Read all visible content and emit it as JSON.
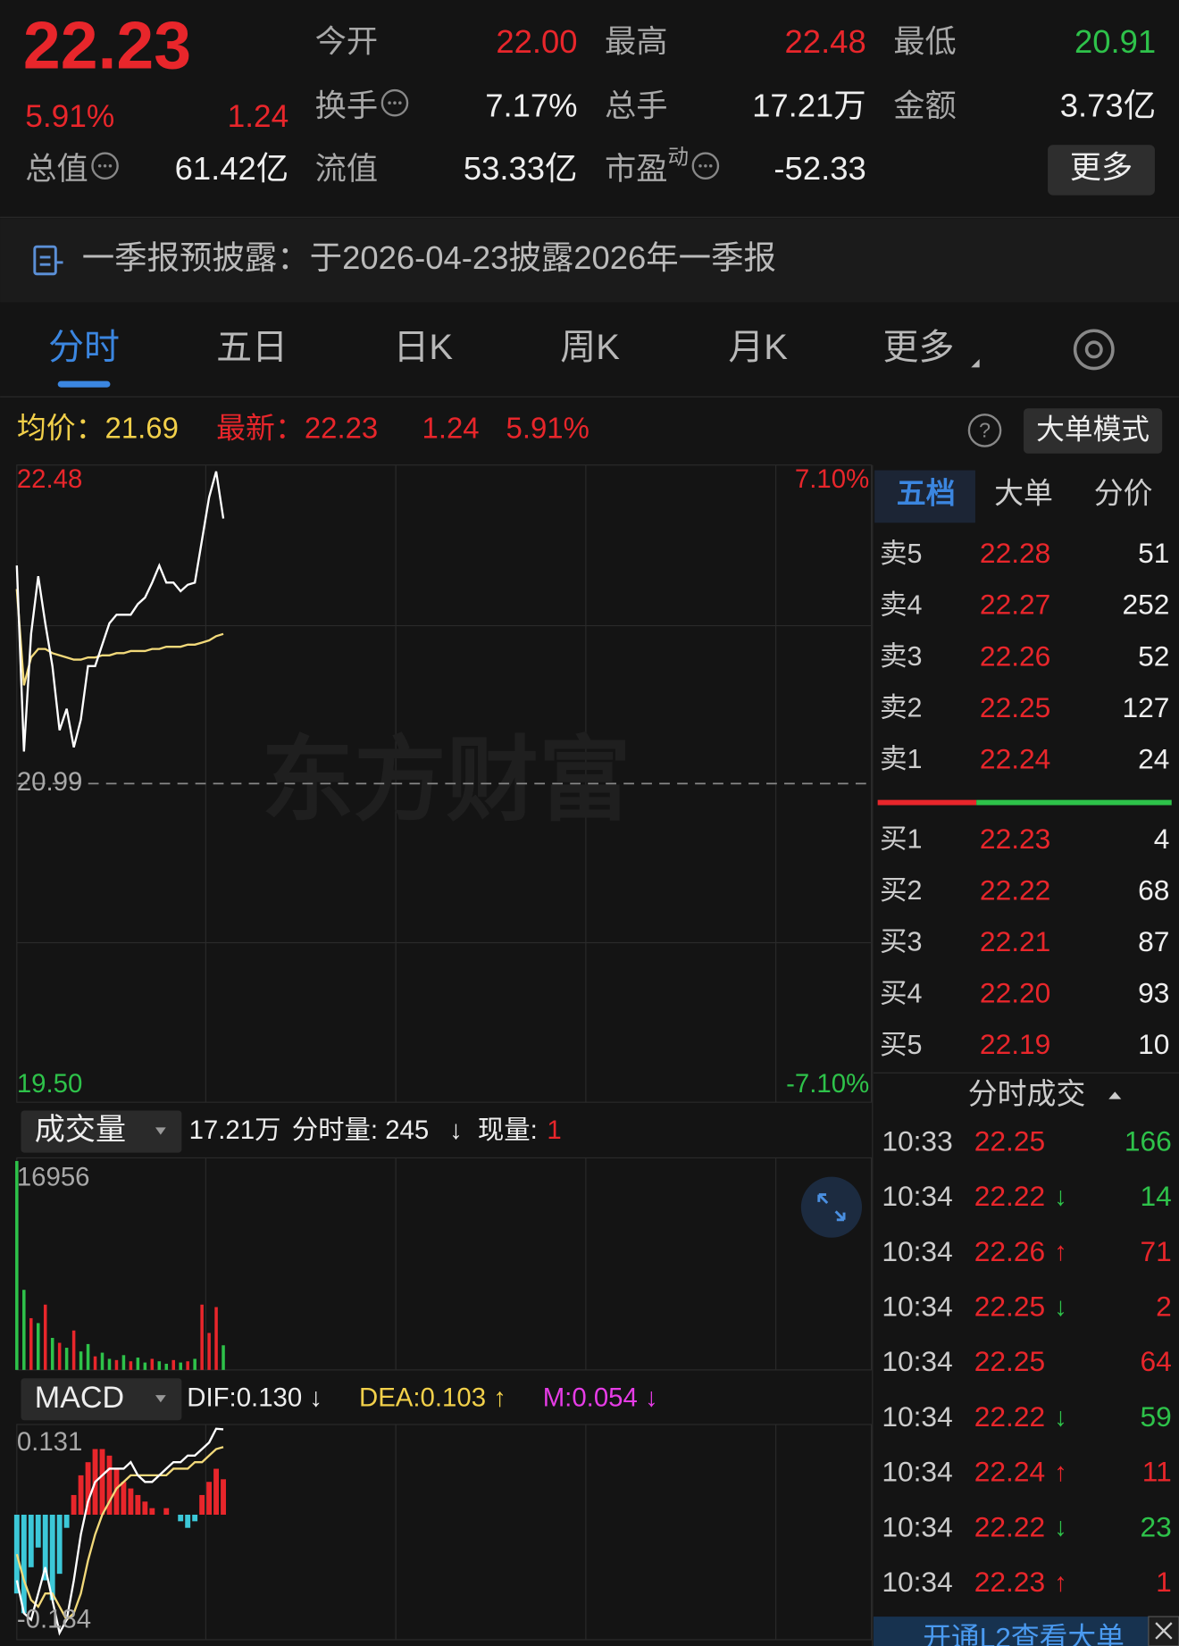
{
  "header": {
    "price": "22.23",
    "change_pct": "5.91%",
    "change": "1.24",
    "stats": [
      {
        "label": "今开",
        "value": "22.00",
        "color": "#e8262b"
      },
      {
        "label": "最高",
        "value": "22.48",
        "color": "#e8262b"
      },
      {
        "label": "最低",
        "value": "20.91",
        "color": "#2ec24a"
      },
      {
        "label": "换手",
        "value": "7.17%",
        "color": "#eeeeee",
        "info": true
      },
      {
        "label": "总手",
        "value": "17.21万",
        "color": "#eeeeee"
      },
      {
        "label": "金额",
        "value": "3.73亿",
        "color": "#eeeeee"
      },
      {
        "label": "总值",
        "value": "61.42亿",
        "color": "#eeeeee",
        "info": true
      },
      {
        "label": "流值",
        "value": "53.33亿",
        "color": "#eeeeee"
      },
      {
        "label": "市盈",
        "sup": "动",
        "value": "-52.33",
        "color": "#eeeeee",
        "info": true
      }
    ],
    "more_button": "更多"
  },
  "notice": "一季报预披露：于2026-04-23披露2026年一季报",
  "tabs": [
    "分时",
    "五日",
    "日K",
    "周K",
    "月K",
    "更多"
  ],
  "info_row": {
    "avg": "均价：21.69",
    "latest": "最新：22.23",
    "change": "1.24",
    "change_pct": "5.91%",
    "help": "?",
    "mode_button": "大单模式"
  },
  "price_chart": {
    "watermark": "东方财富",
    "minutes": [
      0,
      2,
      4,
      6,
      8,
      10,
      12,
      14,
      16,
      18,
      20,
      22,
      24,
      26,
      28,
      30,
      32,
      34,
      36,
      38,
      40,
      42,
      44,
      46,
      48,
      50,
      52,
      54,
      56,
      58
    ],
    "xlim": [
      0,
      240
    ],
    "ylim": [
      19.5,
      22.48
    ],
    "yticks": [
      22.48,
      20.99,
      {
        "value": 19.5,
        "label": "19.50"
      }
    ],
    "pct_ticks": [
      "7.10%",
      "-7.10%"
    ],
    "price": [
      22.01,
      21.14,
      21.69,
      21.96,
      21.74,
      21.54,
      21.24,
      21.34,
      21.16,
      21.29,
      21.54,
      21.54,
      21.64,
      21.74,
      21.78,
      21.78,
      21.78,
      21.83,
      21.86,
      21.93,
      22.01,
      21.93,
      21.93,
      21.89,
      21.92,
      21.93,
      22.13,
      22.33,
      22.45,
      22.23
    ],
    "avg": [
      21.9,
      21.45,
      21.58,
      21.62,
      21.62,
      21.6,
      21.59,
      21.58,
      21.57,
      21.57,
      21.58,
      21.58,
      21.59,
      21.59,
      21.6,
      21.6,
      21.61,
      21.61,
      21.61,
      21.62,
      21.62,
      21.63,
      21.63,
      21.63,
      21.64,
      21.64,
      21.65,
      21.66,
      21.68,
      21.69
    ]
  },
  "volume_chart": {
    "selector": "成交量",
    "total": "17.21万",
    "minute_volume": "分时量: 245",
    "trend": "↓",
    "current_label": "现量:",
    "current": "1",
    "ylim": [
      0,
      16956
    ],
    "yticks": [
      16956
    ],
    "values": [
      16956,
      6500,
      4200,
      3800,
      5300,
      2600,
      2200,
      1800,
      3200,
      1500,
      2100,
      1100,
      1400,
      900,
      800,
      1200,
      700,
      1000,
      600,
      900,
      700,
      500,
      800,
      600,
      700,
      900,
      5300,
      3000,
      5100,
      2000
    ],
    "directions": [
      "down",
      "down",
      "up",
      "down",
      "up",
      "down",
      "up",
      "down",
      "up",
      "down",
      "down",
      "up",
      "down",
      "down",
      "up",
      "down",
      "up",
      "down",
      "down",
      "up",
      "down",
      "down",
      "up",
      "down",
      "up",
      "down",
      "up",
      "up",
      "up",
      "down"
    ]
  },
  "macd_chart": {
    "selector": "MACD",
    "dif_label": "DIF:0.130 ↓",
    "dea_label": "DEA:0.103 ↑",
    "m_label": "M:0.054 ↓",
    "ylim": [
      -0.184,
      0.131
    ],
    "yticks": [
      0.131,
      -0.184
    ],
    "hist": [
      -0.12,
      -0.15,
      -0.08,
      -0.05,
      -0.1,
      -0.13,
      -0.09,
      -0.02,
      0.03,
      0.06,
      0.08,
      0.1,
      0.1,
      0.09,
      0.07,
      0.05,
      0.04,
      0.03,
      0.02,
      0.01,
      0,
      0.01,
      0,
      -0.01,
      -0.02,
      -0.01,
      0.03,
      0.05,
      0.07,
      0.054
    ],
    "dif": [
      -0.1,
      -0.15,
      -0.16,
      -0.12,
      -0.08,
      -0.13,
      -0.18,
      -0.16,
      -0.1,
      -0.03,
      0.02,
      0.05,
      0.06,
      0.07,
      0.07,
      0.07,
      0.08,
      0.06,
      0.05,
      0.05,
      0.06,
      0.07,
      0.08,
      0.08,
      0.09,
      0.09,
      0.1,
      0.11,
      0.131,
      0.13
    ],
    "dea": [
      -0.06,
      -0.1,
      -0.13,
      -0.14,
      -0.12,
      -0.12,
      -0.14,
      -0.16,
      -0.15,
      -0.12,
      -0.07,
      -0.03,
      0,
      0.02,
      0.04,
      0.05,
      0.06,
      0.06,
      0.06,
      0.06,
      0.06,
      0.06,
      0.07,
      0.07,
      0.07,
      0.08,
      0.08,
      0.09,
      0.1,
      0.103
    ]
  },
  "order_book": {
    "tabs": [
      "五档",
      "大单",
      "分价"
    ],
    "sell": [
      {
        "label": "卖5",
        "price": "22.28",
        "volume": "51"
      },
      {
        "label": "卖4",
        "price": "22.27",
        "volume": "252"
      },
      {
        "label": "卖3",
        "price": "22.26",
        "volume": "52"
      },
      {
        "label": "卖2",
        "price": "22.25",
        "volume": "127"
      },
      {
        "label": "卖1",
        "price": "22.24",
        "volume": "24"
      }
    ],
    "buy": [
      {
        "label": "买1",
        "price": "22.23",
        "volume": "4"
      },
      {
        "label": "买2",
        "price": "22.22",
        "volume": "68"
      },
      {
        "label": "买3",
        "price": "22.21",
        "volume": "87"
      },
      {
        "label": "买4",
        "price": "22.20",
        "volume": "93"
      },
      {
        "label": "买5",
        "price": "22.19",
        "volume": "10"
      }
    ]
  },
  "trades": {
    "title": "分时成交",
    "rows": [
      {
        "time": "10:33",
        "price": "22.25",
        "volume": "166",
        "color": "#2ec24a"
      },
      {
        "time": "10:34",
        "price": "22.22",
        "arrow": "↓",
        "volume": "14",
        "color": "#2ec24a"
      },
      {
        "time": "10:34",
        "price": "22.26",
        "arrow": "↑",
        "volume": "71",
        "color": "#e8262b"
      },
      {
        "time": "10:34",
        "price": "22.25",
        "arrow": "↓",
        "volume": "2",
        "color": "#e8262b"
      },
      {
        "time": "10:34",
        "price": "22.25",
        "volume": "64",
        "color": "#e8262b"
      },
      {
        "time": "10:34",
        "price": "22.22",
        "arrow": "↓",
        "volume": "59",
        "color": "#2ec24a"
      },
      {
        "time": "10:34",
        "price": "22.24",
        "arrow": "↑",
        "volume": "11",
        "color": "#e8262b"
      },
      {
        "time": "10:34",
        "price": "22.22",
        "arrow": "↓",
        "volume": "23",
        "color": "#2ec24a"
      },
      {
        "time": "10:34",
        "price": "22.23",
        "arrow": "↑",
        "volume": "1",
        "color": "#e8262b"
      }
    ]
  },
  "banner": "开通L2查看大单"
}
